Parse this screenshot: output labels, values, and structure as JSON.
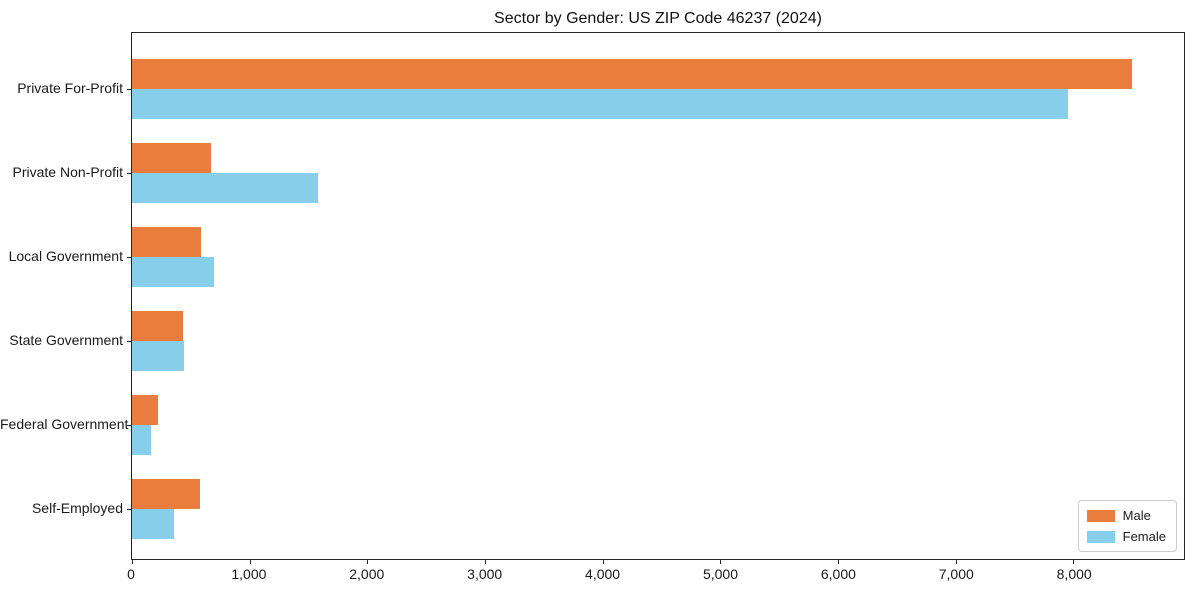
{
  "title": "Sector by Gender: US ZIP Code 46237 (2024)",
  "chart_data": {
    "type": "bar",
    "orientation": "horizontal",
    "title": "Sector by Gender: US ZIP Code 46237 (2024)",
    "categories": [
      "Private For-Profit",
      "Private Non-Profit",
      "Local Government",
      "State Government",
      "Federal Government",
      "Self-Employed"
    ],
    "series": [
      {
        "name": "Male",
        "color": "#e87d3e",
        "values": [
          8500,
          670,
          590,
          430,
          220,
          580
        ]
      },
      {
        "name": "Female",
        "color": "#87ceeb",
        "values": [
          7950,
          1580,
          700,
          440,
          160,
          360
        ]
      }
    ],
    "xlabel": "",
    "ylabel": "",
    "xlim": [
      0,
      8940
    ],
    "xticks": [
      0,
      1000,
      2000,
      3000,
      4000,
      5000,
      6000,
      7000,
      8000
    ],
    "xtick_labels": [
      "0",
      "1,000",
      "2,000",
      "3,000",
      "4,000",
      "5,000",
      "6,000",
      "7,000",
      "8,000"
    ],
    "grid": false,
    "legend": {
      "position": "lower right",
      "entries": [
        "Male",
        "Female"
      ]
    }
  }
}
